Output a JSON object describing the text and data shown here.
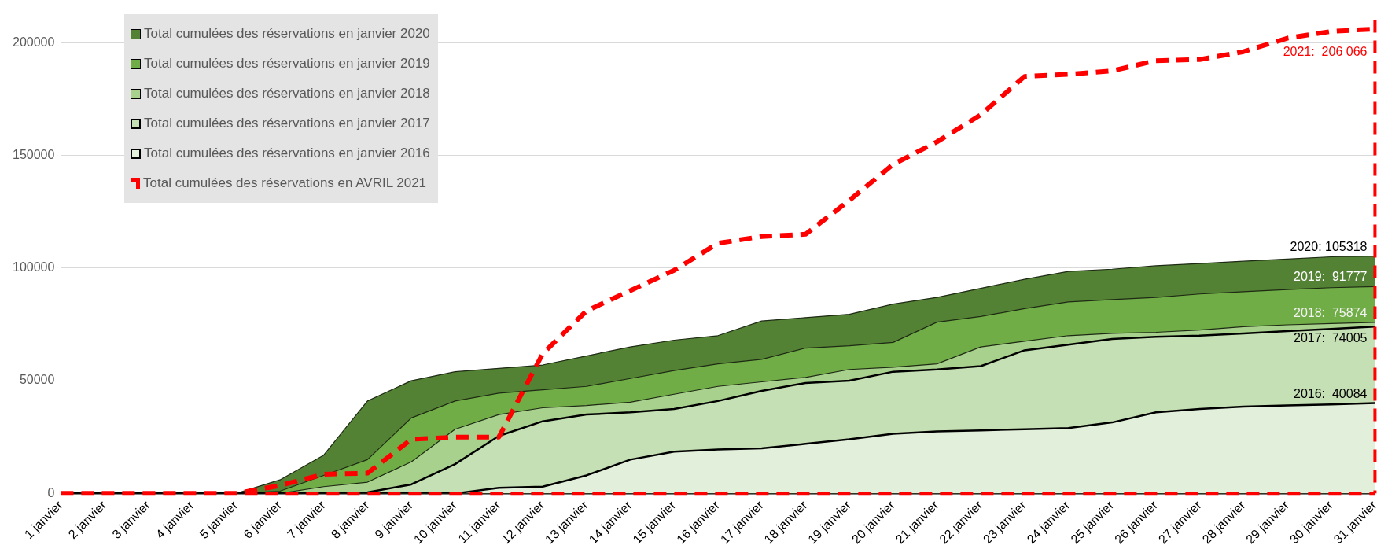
{
  "chart_data": {
    "type": "area",
    "categories": [
      "1 janvier",
      "2 janvier",
      "3 janvier",
      "4 janvier",
      "5 janvier",
      "6 janvier",
      "7 janvier",
      "8 janvier",
      "9 janvier",
      "10 janvier",
      "11 janvier",
      "12 janvier",
      "13 janvier",
      "14 janvier",
      "15 janvier",
      "16 janvier",
      "17 janvier",
      "18 janvier",
      "19 janvier",
      "20 janvier",
      "21 janvier",
      "22 janvier",
      "23 janvier",
      "24 janvier",
      "25 janvier",
      "26 janvier",
      "27 janvier",
      "28 janvier",
      "29 janvier",
      "30 janvier",
      "31 janvier"
    ],
    "series": [
      {
        "name": "Total cumulées des réservations en janvier 2020",
        "color": "#548235",
        "values": [
          0,
          0,
          0,
          0,
          0,
          6000,
          17000,
          41000,
          50000,
          54000,
          55500,
          57000,
          61000,
          65000,
          68000,
          70000,
          76500,
          78000,
          79500,
          84000,
          87000,
          91000,
          95000,
          98500,
          99500,
          101000,
          102000,
          103000,
          104000,
          105000,
          105318
        ]
      },
      {
        "name": "Total cumulées des réservations en janvier 2019",
        "color": "#70ad47",
        "values": [
          0,
          0,
          0,
          0,
          0,
          1000,
          8000,
          15000,
          33500,
          41000,
          44500,
          46000,
          47500,
          51000,
          54500,
          57500,
          59500,
          64500,
          65500,
          67000,
          76000,
          78500,
          82000,
          85000,
          86000,
          87000,
          88500,
          89500,
          90500,
          91300,
          91777
        ]
      },
      {
        "name": "Total cumulées des réservations en janvier 2018",
        "color": "#a9d18e",
        "values": [
          0,
          0,
          0,
          0,
          0,
          0,
          3000,
          5000,
          14000,
          28500,
          35000,
          38000,
          39000,
          40500,
          44000,
          47500,
          49500,
          51500,
          55000,
          56000,
          57500,
          65000,
          67500,
          70000,
          71000,
          71500,
          72500,
          74000,
          74800,
          75400,
          75874
        ]
      },
      {
        "name": "Total cumulées des réservations en janvier 2017",
        "color": "#c5e0b4",
        "values": [
          0,
          0,
          0,
          0,
          0,
          0,
          0,
          500,
          4000,
          13000,
          25500,
          32000,
          35000,
          36000,
          37500,
          41000,
          45500,
          49000,
          50000,
          54000,
          55000,
          56500,
          63500,
          66000,
          68500,
          69500,
          70000,
          71000,
          72000,
          73000,
          74005
        ]
      },
      {
        "name": "Total cumulées des réservations en janvier 2016",
        "color": "#e2efda",
        "values": [
          0,
          0,
          0,
          0,
          0,
          0,
          0,
          0,
          0,
          0,
          2500,
          3000,
          8000,
          15000,
          18500,
          19500,
          20000,
          22000,
          24000,
          26500,
          27500,
          28000,
          28500,
          29000,
          31500,
          36000,
          37500,
          38500,
          39000,
          39500,
          40084
        ]
      },
      {
        "name": "Total cumulées des réservations en AVRIL 2021",
        "type": "line",
        "color": "#ff0000",
        "line_style": "dashed",
        "values": [
          0,
          0,
          0,
          0,
          0,
          3500,
          8500,
          9000,
          24000,
          25000,
          25000,
          62000,
          81000,
          90000,
          99000,
          111000,
          114000,
          115000,
          130000,
          146000,
          156000,
          168000,
          185000,
          186000,
          187500,
          192000,
          192500,
          196000,
          202000,
          205000,
          206066
        ]
      }
    ],
    "ref_lines": [
      {
        "axis": "y",
        "value": 0,
        "color": "#ff0000",
        "line_style": "dashed"
      },
      {
        "axis": "x",
        "value": "31 janvier",
        "color": "#ff0000",
        "line_style": "dashed"
      }
    ],
    "ylim": [
      0,
      210000
    ],
    "yticks": [
      0,
      50000,
      100000,
      150000,
      200000
    ],
    "grid": "y",
    "legend": "top left",
    "annotations": [
      {
        "text": "2021:  206 066",
        "x": "31 janvier",
        "y": 206066
      },
      {
        "text": "2020: 105318",
        "x": "31 janvier",
        "y": 105318
      },
      {
        "text": "2019:  91777",
        "x": "31 janvier",
        "y": 91777
      },
      {
        "text": "2018:  75874",
        "x": "31 janvier",
        "y": 75874
      },
      {
        "text": "2017:  74005",
        "x": "31 janvier",
        "y": 74005
      },
      {
        "text": "2016:  40084",
        "x": "31 janvier",
        "y": 40084
      }
    ]
  }
}
